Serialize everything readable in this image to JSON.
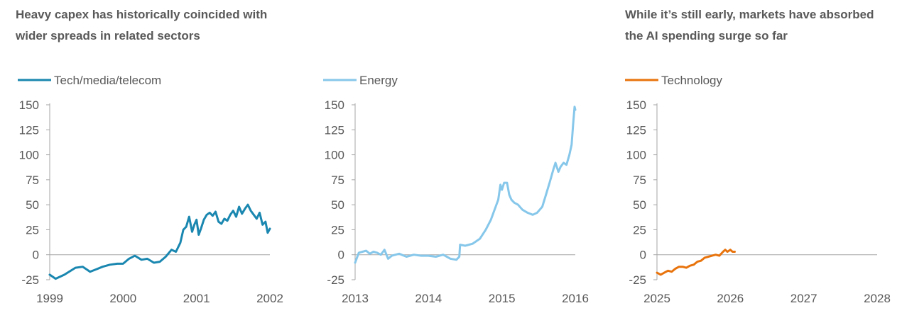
{
  "headline_left": {
    "line1": "Heavy capex has historically coincided with",
    "line2": "wider spreads in related sectors"
  },
  "headline_right": {
    "line1": "While it’s still early, markets have absorbed",
    "line2": "the AI spending surge so far"
  },
  "chart_data": [
    {
      "type": "line",
      "ylim": [
        -25,
        150
      ],
      "yticks": [
        "150",
        "125",
        "100",
        "75",
        "50",
        "25",
        "0",
        "-25"
      ],
      "xlim": [
        1999,
        2002
      ],
      "xticks": [
        "1999",
        "2000",
        "2001",
        "2002"
      ],
      "grid": false,
      "legend": "top-left",
      "color": "#1a87b0",
      "series": [
        {
          "name": "Tech/media/telecom",
          "x": [
            1999.0,
            1999.08,
            1999.2,
            1999.35,
            1999.45,
            1999.55,
            1999.62,
            1999.72,
            1999.82,
            1999.92,
            2000.0,
            2000.08,
            2000.16,
            2000.25,
            2000.33,
            2000.42,
            2000.5,
            2000.58,
            2000.66,
            2000.72,
            2000.78,
            2000.82,
            2000.86,
            2000.9,
            2000.94,
            2000.97,
            2001.0,
            2001.03,
            2001.06,
            2001.1,
            2001.14,
            2001.18,
            2001.22,
            2001.26,
            2001.3,
            2001.34,
            2001.38,
            2001.42,
            2001.46,
            2001.5,
            2001.54,
            2001.58,
            2001.62,
            2001.66,
            2001.7,
            2001.74,
            2001.78,
            2001.82,
            2001.86,
            2001.9,
            2001.94,
            2001.97,
            2002.0
          ],
          "values": [
            -20,
            -24,
            -20,
            -13,
            -12,
            -17,
            -15,
            -12,
            -10,
            -9,
            -9,
            -4,
            -1,
            -5,
            -4,
            -8,
            -7,
            -2,
            5,
            3,
            12,
            25,
            28,
            38,
            23,
            30,
            35,
            20,
            26,
            35,
            40,
            42,
            39,
            43,
            33,
            31,
            36,
            34,
            40,
            44,
            38,
            48,
            41,
            46,
            50,
            44,
            40,
            36,
            42,
            30,
            33,
            22,
            26
          ]
        }
      ]
    },
    {
      "type": "line",
      "ylim": [
        -25,
        150
      ],
      "yticks": [
        "150",
        "125",
        "100",
        "75",
        "50",
        "25",
        "0",
        "-25"
      ],
      "xlim": [
        2013,
        2016
      ],
      "xticks": [
        "2013",
        "2014",
        "2015",
        "2016"
      ],
      "grid": false,
      "legend": "top-left",
      "color": "#86c7ea",
      "series": [
        {
          "name": "Energy",
          "x": [
            2013.0,
            2013.05,
            2013.1,
            2013.15,
            2013.2,
            2013.25,
            2013.3,
            2013.35,
            2013.4,
            2013.45,
            2013.5,
            2013.55,
            2013.6,
            2013.7,
            2013.8,
            2013.9,
            2014.0,
            2014.1,
            2014.2,
            2014.3,
            2014.38,
            2014.42,
            2014.43,
            2014.5,
            2014.6,
            2014.7,
            2014.78,
            2014.85,
            2014.9,
            2014.95,
            2014.98,
            2015.0,
            2015.03,
            2015.07,
            2015.1,
            2015.13,
            2015.17,
            2015.22,
            2015.28,
            2015.35,
            2015.42,
            2015.48,
            2015.55,
            2015.6,
            2015.65,
            2015.7,
            2015.73,
            2015.77,
            2015.8,
            2015.84,
            2015.88,
            2015.92,
            2015.95,
            2015.97,
            2015.99,
            2016.0
          ],
          "values": [
            -8,
            2,
            3,
            4,
            1,
            3,
            2,
            0,
            5,
            -4,
            -1,
            0,
            1,
            -2,
            0,
            -1,
            -1,
            -2,
            0,
            -4,
            -5,
            -2,
            10,
            9,
            11,
            16,
            25,
            35,
            45,
            55,
            70,
            65,
            72,
            72,
            60,
            55,
            52,
            50,
            45,
            42,
            40,
            42,
            48,
            60,
            72,
            85,
            92,
            83,
            88,
            92,
            90,
            100,
            110,
            130,
            148,
            145
          ]
        }
      ]
    },
    {
      "type": "line",
      "ylim": [
        -25,
        150
      ],
      "yticks": [
        "150",
        "125",
        "100",
        "75",
        "50",
        "25",
        "0",
        "-25"
      ],
      "xlim": [
        2025,
        2028
      ],
      "xticks": [
        "2025",
        "2026",
        "2027",
        "2028"
      ],
      "grid": false,
      "legend": "top-left",
      "color": "#e8730c",
      "series": [
        {
          "name": "Technology",
          "x": [
            2025.0,
            2025.05,
            2025.1,
            2025.15,
            2025.2,
            2025.25,
            2025.3,
            2025.35,
            2025.4,
            2025.45,
            2025.5,
            2025.55,
            2025.6,
            2025.65,
            2025.7,
            2025.75,
            2025.8,
            2025.85,
            2025.9,
            2025.93,
            2025.96,
            2026.0,
            2026.03,
            2026.06
          ],
          "values": [
            -18,
            -20,
            -18,
            -16,
            -17,
            -14,
            -12,
            -12,
            -13,
            -11,
            -10,
            -7,
            -6,
            -3,
            -2,
            -1,
            0,
            -1,
            3,
            5,
            3,
            5,
            3,
            3
          ]
        }
      ]
    }
  ]
}
